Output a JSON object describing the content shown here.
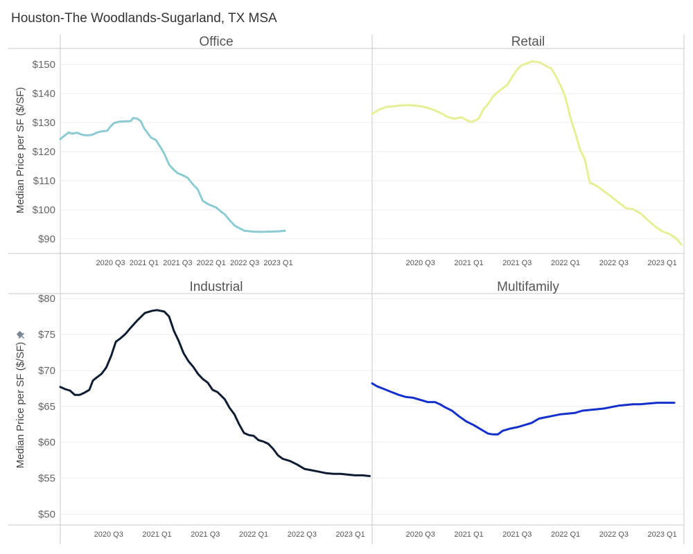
{
  "page": {
    "title": "Houston-The Woodlands-Sugarland, TX MSA"
  },
  "y_axis_label": "Median Price per SF ($/SF)",
  "icons": {
    "pin": "pin-icon"
  },
  "chart_data": [
    {
      "type": "line",
      "title": "Office",
      "color": "#8ccbd2",
      "ylim": [
        85,
        155
      ],
      "yticks": [
        "$90",
        "$100",
        "$110",
        "$120",
        "$130",
        "$140",
        "$150"
      ],
      "ytick_values": [
        90,
        100,
        110,
        120,
        130,
        140,
        150
      ],
      "xlim": [
        0,
        18.6
      ],
      "xticks": [
        "2020 Q3",
        "2021 Q1",
        "2021 Q3",
        "2022 Q1",
        "2022 Q3",
        "2023 Q1"
      ],
      "xtick_values": [
        3,
        5,
        7,
        9,
        11,
        13
      ],
      "x": [
        0.0,
        0.25,
        0.5,
        0.7,
        1.0,
        1.3,
        1.6,
        1.9,
        2.2,
        2.5,
        2.8,
        3.0,
        3.2,
        3.5,
        3.8,
        4.2,
        4.35,
        4.6,
        4.8,
        5.0,
        5.2,
        5.4,
        5.7,
        6.0,
        6.2,
        6.5,
        6.8,
        7.0,
        7.3,
        7.6,
        7.9,
        8.2,
        8.5,
        8.8,
        9.0,
        9.3,
        9.6,
        9.8,
        10.1,
        10.4,
        10.7,
        11.0,
        11.5,
        12.0,
        12.5,
        13.0,
        13.4
      ],
      "values": [
        124.3,
        125.5,
        126.6,
        126.2,
        126.5,
        125.8,
        125.6,
        125.8,
        126.6,
        127.0,
        127.2,
        128.7,
        129.8,
        130.3,
        130.4,
        130.5,
        131.6,
        131.3,
        130.5,
        128.0,
        126.5,
        124.9,
        124.0,
        121.3,
        119.3,
        115.4,
        113.6,
        112.6,
        111.9,
        111.0,
        108.8,
        107.0,
        103.1,
        102.0,
        101.5,
        100.8,
        99.3,
        98.5,
        96.4,
        94.6,
        93.6,
        92.8,
        92.5,
        92.4,
        92.5,
        92.6,
        92.8
      ]
    },
    {
      "type": "line",
      "title": "Retail",
      "color": "#e7ef95",
      "ylim": [
        85,
        155
      ],
      "yticks": [
        "$90",
        "$100",
        "$110",
        "$120",
        "$130",
        "$140",
        "$150"
      ],
      "ytick_values": [
        90,
        100,
        110,
        120,
        130,
        140,
        150
      ],
      "xlim": [
        0,
        12.9
      ],
      "xticks": [
        "2020 Q3",
        "2021 Q1",
        "2021 Q3",
        "2022 Q1",
        "2022 Q3",
        "2023 Q1"
      ],
      "xtick_values": [
        2,
        4,
        6,
        8,
        10,
        12
      ],
      "x": [
        0.0,
        0.3,
        0.6,
        0.9,
        1.2,
        1.5,
        1.8,
        2.1,
        2.4,
        2.6,
        2.9,
        3.1,
        3.4,
        3.7,
        3.9,
        4.1,
        4.4,
        4.6,
        4.8,
        5.0,
        5.2,
        5.4,
        5.6,
        5.8,
        6.0,
        6.2,
        6.4,
        6.6,
        6.8,
        7.0,
        7.2,
        7.4,
        7.6,
        7.8,
        8.0,
        8.2,
        8.4,
        8.6,
        8.8,
        9.0,
        9.3,
        9.6,
        9.9,
        10.2,
        10.5,
        10.8,
        11.1,
        11.4,
        11.7,
        12.0,
        12.3,
        12.6,
        12.8
      ],
      "values": [
        133.0,
        134.5,
        135.4,
        135.6,
        135.9,
        136.0,
        135.8,
        135.5,
        134.8,
        134.2,
        133.0,
        132.0,
        131.3,
        131.8,
        130.9,
        130.2,
        131.3,
        134.5,
        136.4,
        139.0,
        140.5,
        141.8,
        143.0,
        145.8,
        148.2,
        149.8,
        150.3,
        151.0,
        150.9,
        150.5,
        149.4,
        148.7,
        146.0,
        142.7,
        138.5,
        131.8,
        126.5,
        120.7,
        117.4,
        109.4,
        108.2,
        106.3,
        104.5,
        102.5,
        100.6,
        100.2,
        98.8,
        96.5,
        94.3,
        92.6,
        91.7,
        90.0,
        88.0
      ]
    },
    {
      "type": "line",
      "title": "Industrial",
      "color": "#0e1c32",
      "ylim": [
        48.5,
        80.5
      ],
      "yticks": [
        "$50",
        "$55",
        "$60",
        "$65",
        "$70",
        "$75",
        "$80"
      ],
      "ytick_values": [
        50,
        55,
        60,
        65,
        70,
        75,
        80
      ],
      "xlim": [
        0,
        12.9
      ],
      "xticks": [
        "2020 Q3",
        "2021 Q1",
        "2021 Q3",
        "2022 Q1",
        "2022 Q3",
        "2023 Q1"
      ],
      "xtick_values": [
        2,
        4,
        6,
        8,
        10,
        12
      ],
      "x": [
        0.0,
        0.2,
        0.4,
        0.6,
        0.8,
        1.0,
        1.2,
        1.35,
        1.5,
        1.7,
        1.9,
        2.1,
        2.3,
        2.5,
        2.7,
        2.9,
        3.2,
        3.5,
        3.8,
        4.0,
        4.3,
        4.5,
        4.7,
        4.9,
        5.1,
        5.3,
        5.5,
        5.7,
        5.9,
        6.1,
        6.3,
        6.5,
        6.8,
        7.0,
        7.2,
        7.4,
        7.6,
        7.8,
        8.0,
        8.2,
        8.4,
        8.6,
        8.8,
        9.0,
        9.2,
        9.5,
        9.8,
        10.1,
        10.4,
        10.7,
        11.0,
        11.3,
        11.6,
        11.9,
        12.2,
        12.5,
        12.8
      ],
      "values": [
        67.7,
        67.4,
        67.2,
        66.6,
        66.6,
        66.9,
        67.3,
        68.6,
        69.0,
        69.5,
        70.4,
        72.0,
        74.0,
        74.5,
        75.1,
        75.9,
        77.0,
        78.0,
        78.3,
        78.4,
        78.2,
        77.5,
        75.5,
        74.1,
        72.4,
        71.3,
        70.5,
        69.5,
        68.8,
        68.3,
        67.3,
        67.0,
        66.0,
        64.8,
        63.9,
        62.5,
        61.3,
        61.0,
        60.9,
        60.3,
        60.1,
        59.8,
        59.1,
        58.2,
        57.7,
        57.4,
        56.9,
        56.3,
        56.1,
        55.9,
        55.7,
        55.6,
        55.6,
        55.5,
        55.4,
        55.4,
        55.3
      ]
    },
    {
      "type": "line",
      "title": "Multifamily",
      "color": "#1330cc",
      "ylim": [
        48.5,
        80.5
      ],
      "yticks": [
        "$50",
        "$55",
        "$60",
        "$65",
        "$70",
        "$75",
        "$80"
      ],
      "ytick_values": [
        50,
        55,
        60,
        65,
        70,
        75,
        80
      ],
      "xlim": [
        0,
        12.9
      ],
      "xticks": [
        "2020 Q3",
        "2021 Q1",
        "2021 Q3",
        "2022 Q1",
        "2022 Q3",
        "2023 Q1"
      ],
      "xtick_values": [
        2,
        4,
        6,
        8,
        10,
        12
      ],
      "x": [
        0.0,
        0.2,
        0.5,
        0.8,
        1.1,
        1.4,
        1.7,
        2.0,
        2.3,
        2.6,
        2.8,
        3.0,
        3.3,
        3.6,
        3.9,
        4.2,
        4.4,
        4.6,
        4.8,
        5.0,
        5.2,
        5.4,
        5.7,
        6.0,
        6.3,
        6.6,
        6.9,
        7.2,
        7.5,
        7.8,
        8.1,
        8.4,
        8.7,
        9.0,
        9.3,
        9.6,
        9.9,
        10.2,
        10.5,
        10.8,
        11.1,
        11.4,
        11.8,
        12.2,
        12.5
      ],
      "values": [
        68.2,
        67.8,
        67.4,
        67.0,
        66.6,
        66.3,
        66.2,
        65.9,
        65.6,
        65.6,
        65.3,
        64.9,
        64.4,
        63.6,
        62.9,
        62.4,
        62.0,
        61.6,
        61.2,
        61.1,
        61.1,
        61.6,
        61.9,
        62.1,
        62.4,
        62.7,
        63.3,
        63.5,
        63.7,
        63.9,
        64.0,
        64.1,
        64.4,
        64.5,
        64.6,
        64.7,
        64.9,
        65.1,
        65.2,
        65.3,
        65.3,
        65.4,
        65.5,
        65.5,
        65.5
      ]
    }
  ]
}
